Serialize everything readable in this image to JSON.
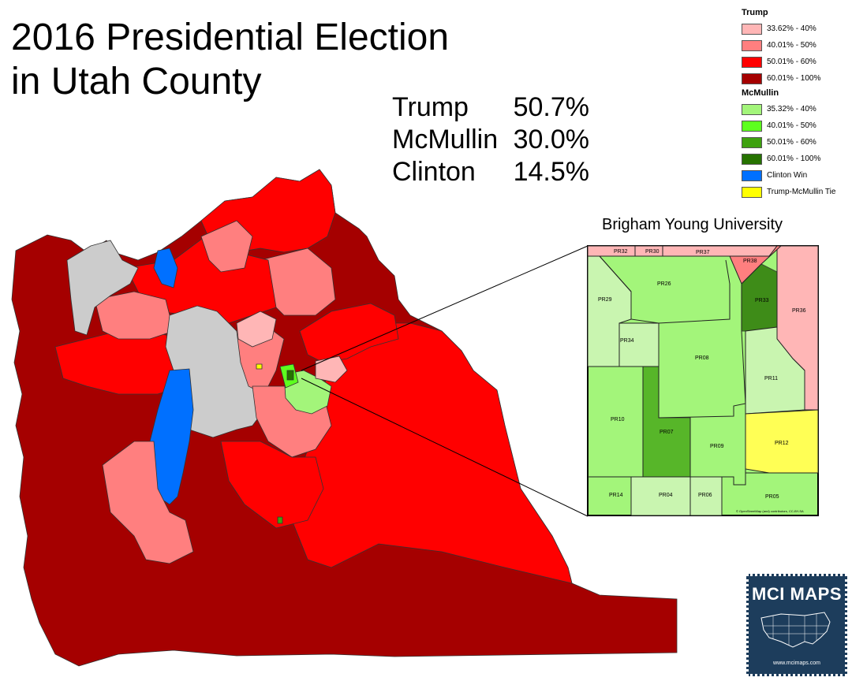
{
  "title_line1": "2016 Presidential Election",
  "title_line2": "in Utah County",
  "results": [
    {
      "candidate": "Trump",
      "pct": "50.7%"
    },
    {
      "candidate": "McMullin",
      "pct": "30.0%"
    },
    {
      "candidate": "Clinton",
      "pct": "14.5%"
    }
  ],
  "legend": {
    "trump_title": "Trump",
    "trump_items": [
      {
        "label": "33.62% - 40%",
        "color": "#ffb6b6"
      },
      {
        "label": "40.01% - 50%",
        "color": "#ff7f7f"
      },
      {
        "label": "50.01% - 60%",
        "color": "#ff0000"
      },
      {
        "label": "60.01% - 100%",
        "color": "#a50000"
      }
    ],
    "mcmullin_title": "McMullin",
    "mcmullin_items": [
      {
        "label": "35.32% - 40%",
        "color": "#a3f57a"
      },
      {
        "label": "40.01% - 50%",
        "color": "#5dff1e"
      },
      {
        "label": "50.01% - 60%",
        "color": "#3ea10f"
      },
      {
        "label": "60.01% - 100%",
        "color": "#267200"
      }
    ],
    "other_items": [
      {
        "label": "Clinton Win",
        "color": "#0070ff"
      },
      {
        "label": "Trump-McMullin Tie",
        "color": "#ffff00"
      }
    ]
  },
  "inset": {
    "title": "Brigham Young University",
    "precincts": [
      "PR32",
      "PR30",
      "PR37",
      "PR38",
      "PR26",
      "PR29",
      "PR33",
      "PR36",
      "PR34",
      "PR08",
      "PR11",
      "PR10",
      "PR07",
      "PR09",
      "PR12",
      "PR14",
      "PR04",
      "PR06",
      "PR05"
    ],
    "attribution": "© OpenStreetMap (and) contributors, CC-BY-SA"
  },
  "logo": {
    "name": "MCI MAPS",
    "url": "www.mcimaps.com"
  },
  "colors": {
    "no_data": "#cccccc",
    "lake": "#cccccc",
    "border": "#333333"
  }
}
